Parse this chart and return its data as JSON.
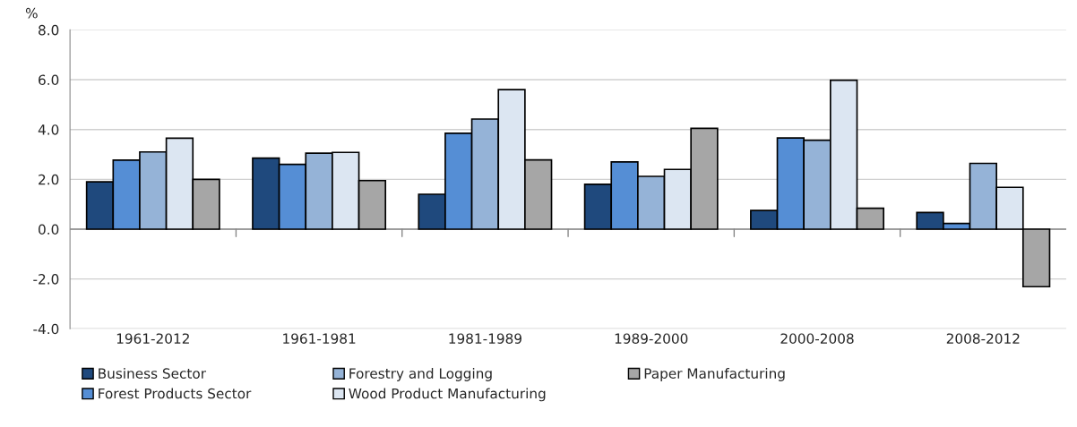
{
  "chart_data": {
    "type": "bar",
    "ylabel": "%",
    "categories": [
      "1961-2012",
      "1961-1981",
      "1981-1989",
      "1989-2000",
      "2000-2008",
      "2008-2012"
    ],
    "series": [
      {
        "name": "Business Sector",
        "color": "#1f497d",
        "values": [
          1.9,
          2.85,
          1.4,
          1.8,
          0.75,
          0.67
        ]
      },
      {
        "name": "Forest Products Sector",
        "color": "#558ed5",
        "values": [
          2.77,
          2.6,
          3.85,
          2.7,
          3.66,
          0.23
        ]
      },
      {
        "name": "Forestry and Logging",
        "color": "#95b3d7",
        "values": [
          3.1,
          3.05,
          4.42,
          2.12,
          3.57,
          2.64
        ]
      },
      {
        "name": "Wood Product Manufacturing",
        "color": "#dce6f2",
        "values": [
          3.65,
          3.08,
          5.6,
          2.4,
          5.98,
          1.68
        ]
      },
      {
        "name": "Paper Manufacturing",
        "color": "#a6a6a6",
        "values": [
          2.0,
          1.95,
          2.78,
          4.05,
          0.84,
          -2.31
        ]
      }
    ],
    "ylim": [
      -4,
      8
    ],
    "yticks": [
      {
        "value": -4,
        "label": "-4.0"
      },
      {
        "value": -2,
        "label": "-2.0"
      },
      {
        "value": 0,
        "label": "0.0"
      },
      {
        "value": 2,
        "label": "2.0"
      },
      {
        "value": 4,
        "label": "4.0"
      },
      {
        "value": 6,
        "label": "6.0"
      },
      {
        "value": 8,
        "label": "8.0"
      }
    ],
    "grid": "y",
    "legend": "bottom"
  }
}
